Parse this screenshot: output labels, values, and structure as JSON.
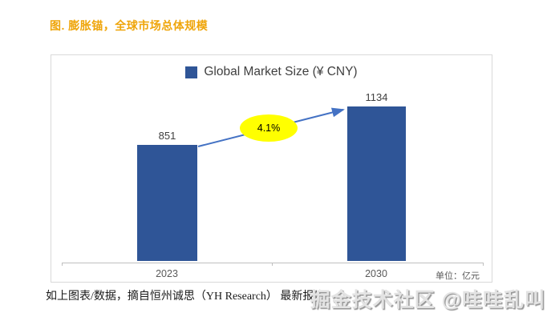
{
  "page": {
    "title": "图. 膨胀锚，全球市场总体规模"
  },
  "theme": {
    "title_color": "#EFA50A",
    "bar_color": "#2F5597",
    "line_color": "#4472C4",
    "ellipse_fill": "#FFFF00",
    "frame_border": "#D9D9D9",
    "axis_color": "#BFBFBF",
    "text_dark": "#404040",
    "text_gray": "#595959"
  },
  "chart": {
    "legend_label": "Global Market Size (¥ CNY)",
    "unit_label": "单位：亿元",
    "growth_annotation": "4.1%"
  },
  "chart_data": {
    "type": "bar",
    "categories": [
      "2023",
      "2030"
    ],
    "values": [
      851,
      1134
    ],
    "title": "Global Market Size (¥ CNY)",
    "xlabel": "",
    "ylabel": "",
    "unit": "亿元",
    "ylim": [
      0,
      1250
    ],
    "grid": false,
    "legend_position": "top",
    "annotations": [
      {
        "text": "4.1%",
        "shape": "yellow-ellipse",
        "between": [
          "2023",
          "2030"
        ]
      }
    ],
    "connector": {
      "type": "arrow-line",
      "from_bar": 0,
      "to_bar": 1
    }
  },
  "footer": {
    "source_text": "如上图表/数据，摘自恒州诚思（YH Research） 最新报告"
  },
  "watermark": {
    "text": "掘金技术社区 @哇哇乱叫"
  }
}
